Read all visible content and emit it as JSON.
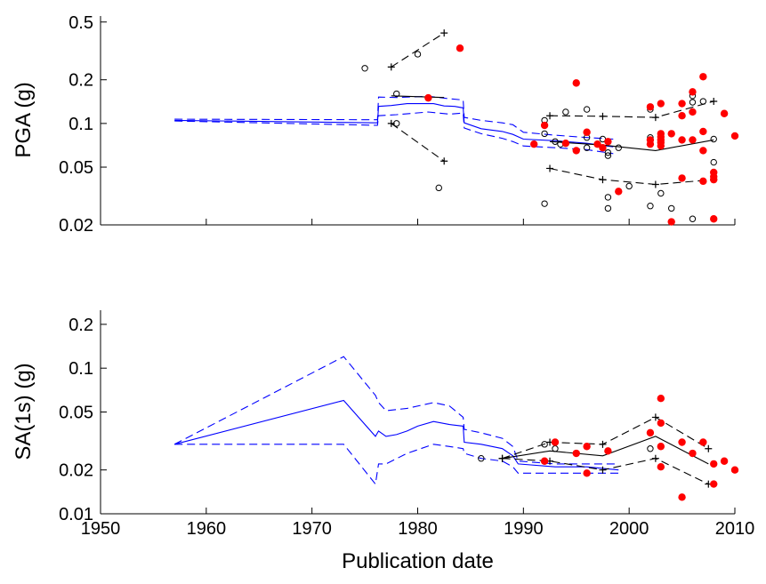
{
  "chart_data": [
    {
      "type": "line",
      "ylabel": "PGA (g)",
      "xlabel": "",
      "yscale": "log",
      "xlim": [
        1950,
        2010
      ],
      "ylim": [
        0.02,
        0.55
      ],
      "yticks": [
        0.02,
        0.05,
        0.1,
        0.2,
        0.5
      ],
      "ytick_labels": [
        "0.02",
        "0.05",
        "0.1",
        "0.2",
        "0.5"
      ],
      "xticks": [
        1950,
        1960,
        1970,
        1980,
        1990,
        2000,
        2010
      ],
      "xtick_labels": [
        "",
        "",
        "",
        "",
        "",
        "",
        ""
      ],
      "grid": false,
      "colors": {
        "blue": "#0000ff",
        "black": "#000000",
        "red": "#ff0000"
      },
      "series": [
        {
          "style": "blue-solid",
          "points": [
            [
              1957,
              0.105
            ],
            [
              1976.2,
              0.101
            ],
            [
              1976.3,
              0.131
            ],
            [
              1977.5,
              0.133
            ],
            [
              1979,
              0.137
            ],
            [
              1981.5,
              0.137
            ],
            [
              1982.5,
              0.132
            ],
            [
              1983.5,
              0.131
            ],
            [
              1984.3,
              0.128
            ],
            [
              1984.4,
              0.101
            ],
            [
              1986,
              0.092
            ],
            [
              1988,
              0.088
            ],
            [
              1989,
              0.084
            ],
            [
              1990,
              0.078
            ],
            [
              1993,
              0.076
            ],
            [
              1996,
              0.073
            ],
            [
              1998.5,
              0.069
            ]
          ]
        },
        {
          "style": "blue-dashed",
          "points": [
            [
              1957,
              0.107
            ],
            [
              1976.2,
              0.106
            ],
            [
              1976.3,
              0.152
            ],
            [
              1978,
              0.151
            ],
            [
              1981,
              0.154
            ],
            [
              1983,
              0.148
            ],
            [
              1984.3,
              0.145
            ],
            [
              1984.4,
              0.11
            ],
            [
              1986,
              0.105
            ],
            [
              1988,
              0.101
            ],
            [
              1989,
              0.098
            ],
            [
              1990,
              0.087
            ],
            [
              1993,
              0.083
            ],
            [
              1996,
              0.08
            ],
            [
              1998.5,
              0.078
            ]
          ]
        },
        {
          "style": "blue-dashed",
          "points": [
            [
              1957,
              0.104
            ],
            [
              1976.2,
              0.097
            ],
            [
              1976.3,
              0.113
            ],
            [
              1978,
              0.115
            ],
            [
              1981,
              0.12
            ],
            [
              1983,
              0.116
            ],
            [
              1984.3,
              0.118
            ],
            [
              1984.4,
              0.093
            ],
            [
              1986,
              0.085
            ],
            [
              1988,
              0.079
            ],
            [
              1989,
              0.075
            ],
            [
              1990,
              0.07
            ],
            [
              1993,
              0.068
            ],
            [
              1996,
              0.066
            ],
            [
              1998.5,
              0.062
            ]
          ]
        },
        {
          "style": "black-solid",
          "points": [
            [
              1977.5,
              0.155
            ],
            [
              1982.5,
              0.151
            ]
          ]
        },
        {
          "style": "black-dashed-plus",
          "points": [
            [
              1977.5,
              0.245
            ],
            [
              1982.5,
              0.42
            ]
          ]
        },
        {
          "style": "black-dashed-plus",
          "points": [
            [
              1977.5,
              0.1
            ],
            [
              1982.5,
              0.055
            ]
          ]
        },
        {
          "style": "black-solid",
          "points": [
            [
              1992.5,
              0.075
            ],
            [
              1997.5,
              0.071
            ],
            [
              2002.5,
              0.065
            ],
            [
              2008,
              0.077
            ]
          ]
        },
        {
          "style": "black-dashed-plus",
          "points": [
            [
              1992.5,
              0.113
            ],
            [
              1997.5,
              0.112
            ],
            [
              2002.5,
              0.11
            ],
            [
              2008,
              0.142
            ]
          ]
        },
        {
          "style": "black-dashed-plus",
          "points": [
            [
              1992.5,
              0.049
            ],
            [
              1997.5,
              0.041
            ],
            [
              2002.5,
              0.038
            ],
            [
              2008,
              0.041
            ]
          ]
        }
      ],
      "open_points": [
        [
          1975,
          0.24
        ],
        [
          1978,
          0.16
        ],
        [
          1978,
          0.1
        ],
        [
          1980,
          0.3
        ],
        [
          1982,
          0.036
        ],
        [
          1992,
          0.105
        ],
        [
          1992,
          0.085
        ],
        [
          1992,
          0.028
        ],
        [
          1993,
          0.075
        ],
        [
          1993.5,
          0.072
        ],
        [
          1994,
          0.12
        ],
        [
          1996,
          0.125
        ],
        [
          1996,
          0.08
        ],
        [
          1996,
          0.068
        ],
        [
          1997.5,
          0.078
        ],
        [
          1998,
          0.063
        ],
        [
          1998,
          0.06
        ],
        [
          1998,
          0.031
        ],
        [
          1998,
          0.026
        ],
        [
          1999,
          0.068
        ],
        [
          2000,
          0.037
        ],
        [
          2002,
          0.125
        ],
        [
          2002,
          0.08
        ],
        [
          2002,
          0.072
        ],
        [
          2002,
          0.027
        ],
        [
          2003,
          0.033
        ],
        [
          2004,
          0.026
        ],
        [
          2006,
          0.155
        ],
        [
          2006,
          0.14
        ],
        [
          2006,
          0.022
        ],
        [
          2007,
          0.142
        ],
        [
          2008,
          0.078
        ],
        [
          2008,
          0.054
        ]
      ],
      "filled_points": [
        [
          1981,
          0.15
        ],
        [
          1984,
          0.33
        ],
        [
          1991,
          0.072
        ],
        [
          1992,
          0.097
        ],
        [
          1994,
          0.073
        ],
        [
          1995,
          0.19
        ],
        [
          1995,
          0.065
        ],
        [
          1996,
          0.087
        ],
        [
          1997,
          0.072
        ],
        [
          1997.5,
          0.068
        ],
        [
          1998,
          0.075
        ],
        [
          1999,
          0.034
        ],
        [
          2002,
          0.13
        ],
        [
          2002,
          0.077
        ],
        [
          2002,
          0.072
        ],
        [
          2003,
          0.137
        ],
        [
          2003,
          0.085
        ],
        [
          2003,
          0.081
        ],
        [
          2003,
          0.077
        ],
        [
          2003,
          0.074
        ],
        [
          2003,
          0.07
        ],
        [
          2004,
          0.085
        ],
        [
          2004,
          0.021
        ],
        [
          2005,
          0.137
        ],
        [
          2005,
          0.113
        ],
        [
          2005,
          0.077
        ],
        [
          2005,
          0.042
        ],
        [
          2006,
          0.165
        ],
        [
          2006,
          0.12
        ],
        [
          2006,
          0.077
        ],
        [
          2007,
          0.21
        ],
        [
          2007,
          0.088
        ],
        [
          2007,
          0.065
        ],
        [
          2007,
          0.04
        ],
        [
          2008,
          0.046
        ],
        [
          2008,
          0.043
        ],
        [
          2008,
          0.041
        ],
        [
          2008,
          0.022
        ],
        [
          2009,
          0.117
        ],
        [
          2010,
          0.082
        ]
      ]
    },
    {
      "type": "line",
      "ylabel": "SA(1s) (g)",
      "xlabel": "Publication date",
      "yscale": "log",
      "xlim": [
        1950,
        2010
      ],
      "ylim": [
        0.01,
        0.25
      ],
      "yticks": [
        0.01,
        0.02,
        0.05,
        0.1,
        0.2
      ],
      "ytick_labels": [
        "0.01",
        "0.02",
        "0.05",
        "0.1",
        "0.2"
      ],
      "xticks": [
        1950,
        1960,
        1970,
        1980,
        1990,
        2000,
        2010
      ],
      "xtick_labels": [
        "1950",
        "1960",
        "1970",
        "1980",
        "1990",
        "2000",
        "2010"
      ],
      "grid": false,
      "colors": {
        "blue": "#0000ff",
        "black": "#000000",
        "red": "#ff0000"
      },
      "series": [
        {
          "style": "blue-solid",
          "points": [
            [
              1957,
              0.03
            ],
            [
              1973,
              0.06
            ],
            [
              1976,
              0.034
            ],
            [
              1976.3,
              0.037
            ],
            [
              1977,
              0.034
            ],
            [
              1978,
              0.035
            ],
            [
              1979,
              0.037
            ],
            [
              1980,
              0.04
            ],
            [
              1981.5,
              0.043
            ],
            [
              1983,
              0.041
            ],
            [
              1984.3,
              0.04
            ],
            [
              1984.4,
              0.031
            ],
            [
              1986,
              0.03
            ],
            [
              1988,
              0.028
            ],
            [
              1989,
              0.025
            ],
            [
              1989.5,
              0.022
            ],
            [
              1993,
              0.021
            ],
            [
              1996,
              0.021
            ],
            [
              1999,
              0.02
            ]
          ]
        },
        {
          "style": "blue-dashed",
          "points": [
            [
              1957,
              0.03
            ],
            [
              1973,
              0.12
            ],
            [
              1976,
              0.065
            ],
            [
              1976.3,
              0.058
            ],
            [
              1977,
              0.051
            ],
            [
              1979,
              0.053
            ],
            [
              1981.5,
              0.058
            ],
            [
              1983,
              0.055
            ],
            [
              1984.3,
              0.046
            ],
            [
              1984.4,
              0.038
            ],
            [
              1986,
              0.036
            ],
            [
              1988,
              0.033
            ],
            [
              1989,
              0.029
            ],
            [
              1989.5,
              0.023
            ],
            [
              1993,
              0.022
            ],
            [
              1996,
              0.022
            ],
            [
              1999,
              0.022
            ]
          ]
        },
        {
          "style": "blue-dashed",
          "points": [
            [
              1957,
              0.03
            ],
            [
              1973,
              0.03
            ],
            [
              1976,
              0.016
            ],
            [
              1976.3,
              0.022
            ],
            [
              1977,
              0.022
            ],
            [
              1979,
              0.026
            ],
            [
              1981.5,
              0.03
            ],
            [
              1983,
              0.029
            ],
            [
              1984.3,
              0.028
            ],
            [
              1984.4,
              0.026
            ],
            [
              1986,
              0.024
            ],
            [
              1988,
              0.023
            ],
            [
              1989,
              0.021
            ],
            [
              1989.5,
              0.019
            ],
            [
              1993,
              0.019
            ],
            [
              1996,
              0.019
            ],
            [
              1999,
              0.019
            ]
          ]
        },
        {
          "style": "black-solid",
          "points": [
            [
              1988,
              0.024
            ],
            [
              1992.5,
              0.027
            ],
            [
              1997.5,
              0.025
            ],
            [
              2002.5,
              0.034
            ],
            [
              2007.5,
              0.022
            ]
          ]
        },
        {
          "style": "black-dashed-plus",
          "points": [
            [
              1988,
              0.024
            ],
            [
              1992.5,
              0.031
            ],
            [
              1997.5,
              0.03
            ],
            [
              2002.5,
              0.046
            ],
            [
              2007.5,
              0.028
            ]
          ]
        },
        {
          "style": "black-dashed-plus",
          "points": [
            [
              1988,
              0.024
            ],
            [
              1992.5,
              0.023
            ],
            [
              1997.5,
              0.02
            ],
            [
              2002.5,
              0.024
            ],
            [
              2007.5,
              0.016
            ]
          ]
        }
      ],
      "open_points": [
        [
          1986,
          0.024
        ],
        [
          1992,
          0.03
        ],
        [
          1993,
          0.028
        ],
        [
          2002,
          0.028
        ]
      ],
      "filled_points": [
        [
          1992,
          0.023
        ],
        [
          1993,
          0.031
        ],
        [
          1995,
          0.026
        ],
        [
          1996,
          0.019
        ],
        [
          1996,
          0.029
        ],
        [
          1998,
          0.027
        ],
        [
          2002,
          0.036
        ],
        [
          2003,
          0.062
        ],
        [
          2003,
          0.042
        ],
        [
          2003,
          0.029
        ],
        [
          2003,
          0.021
        ],
        [
          2005,
          0.013
        ],
        [
          2005,
          0.031
        ],
        [
          2006,
          0.026
        ],
        [
          2007,
          0.031
        ],
        [
          2008,
          0.022
        ],
        [
          2008,
          0.016
        ],
        [
          2009,
          0.023
        ],
        [
          2010,
          0.02
        ]
      ]
    }
  ]
}
